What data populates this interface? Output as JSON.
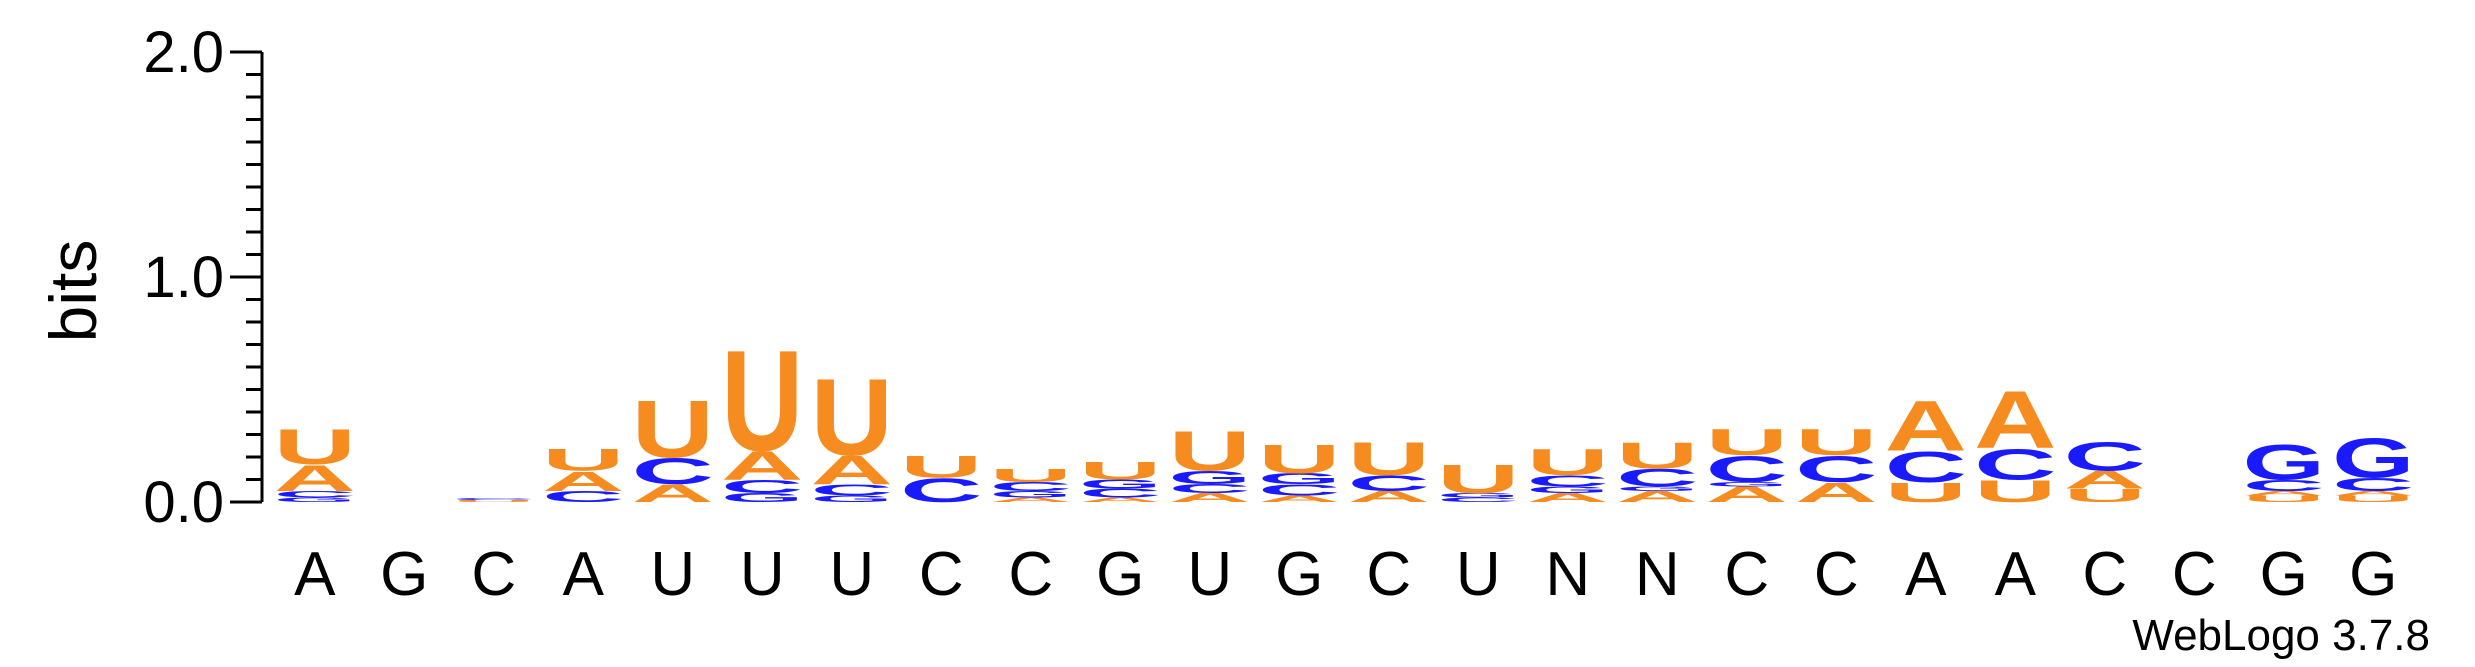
{
  "chart_data": {
    "type": "sequence-logo",
    "ylabel": "bits",
    "ylim": [
      0,
      2.0
    ],
    "yticks": [
      "0.0",
      "1.0",
      "2.0"
    ],
    "credit": "WebLogo 3.7.8",
    "colors": {
      "A": "#f68b1f",
      "U": "#f68b1f",
      "C": "#1a1aff",
      "G": "#1a1aff"
    },
    "positions": [
      {
        "label": "A",
        "stack": [
          {
            "letter": "G",
            "bits": 0.02
          },
          {
            "letter": "C",
            "bits": 0.03
          },
          {
            "letter": "A",
            "bits": 0.12
          },
          {
            "letter": "U",
            "bits": 0.16
          }
        ]
      },
      {
        "label": "G",
        "stack": []
      },
      {
        "label": "C",
        "stack": [
          {
            "letter": "U",
            "bits": 0.01
          },
          {
            "letter": "C",
            "bits": 0.01
          }
        ]
      },
      {
        "label": "A",
        "stack": [
          {
            "letter": "C",
            "bits": 0.05
          },
          {
            "letter": "A",
            "bits": 0.09
          },
          {
            "letter": "U",
            "bits": 0.1
          }
        ]
      },
      {
        "label": "U",
        "stack": [
          {
            "letter": "A",
            "bits": 0.08
          },
          {
            "letter": "C",
            "bits": 0.12
          },
          {
            "letter": "U",
            "bits": 0.26
          }
        ]
      },
      {
        "label": "U",
        "stack": [
          {
            "letter": "G",
            "bits": 0.04
          },
          {
            "letter": "C",
            "bits": 0.06
          },
          {
            "letter": "A",
            "bits": 0.13
          },
          {
            "letter": "U",
            "bits": 0.46
          }
        ]
      },
      {
        "label": "U",
        "stack": [
          {
            "letter": "G",
            "bits": 0.03
          },
          {
            "letter": "C",
            "bits": 0.05
          },
          {
            "letter": "A",
            "bits": 0.13
          },
          {
            "letter": "U",
            "bits": 0.35
          }
        ]
      },
      {
        "label": "C",
        "stack": [
          {
            "letter": "C",
            "bits": 0.11
          },
          {
            "letter": "U",
            "bits": 0.1
          }
        ]
      },
      {
        "label": "C",
        "stack": [
          {
            "letter": "A",
            "bits": 0.02
          },
          {
            "letter": "G",
            "bits": 0.03
          },
          {
            "letter": "C",
            "bits": 0.04
          },
          {
            "letter": "U",
            "bits": 0.06
          }
        ]
      },
      {
        "label": "G",
        "stack": [
          {
            "letter": "A",
            "bits": 0.02
          },
          {
            "letter": "C",
            "bits": 0.04
          },
          {
            "letter": "G",
            "bits": 0.04
          },
          {
            "letter": "U",
            "bits": 0.08
          }
        ]
      },
      {
        "label": "U",
        "stack": [
          {
            "letter": "A",
            "bits": 0.04
          },
          {
            "letter": "C",
            "bits": 0.04
          },
          {
            "letter": "G",
            "bits": 0.06
          },
          {
            "letter": "U",
            "bits": 0.18
          }
        ]
      },
      {
        "label": "G",
        "stack": [
          {
            "letter": "A",
            "bits": 0.03
          },
          {
            "letter": "C",
            "bits": 0.05
          },
          {
            "letter": "G",
            "bits": 0.05
          },
          {
            "letter": "U",
            "bits": 0.13
          }
        ]
      },
      {
        "label": "C",
        "stack": [
          {
            "letter": "A",
            "bits": 0.05
          },
          {
            "letter": "C",
            "bits": 0.07
          },
          {
            "letter": "U",
            "bits": 0.15
          }
        ]
      },
      {
        "label": "U",
        "stack": [
          {
            "letter": "C",
            "bits": 0.02
          },
          {
            "letter": "G",
            "bits": 0.02
          },
          {
            "letter": "U",
            "bits": 0.13
          }
        ]
      },
      {
        "label": "N",
        "stack": [
          {
            "letter": "A",
            "bits": 0.04
          },
          {
            "letter": "G",
            "bits": 0.03
          },
          {
            "letter": "C",
            "bits": 0.05
          },
          {
            "letter": "U",
            "bits": 0.12
          }
        ]
      },
      {
        "label": "N",
        "stack": [
          {
            "letter": "A",
            "bits": 0.05
          },
          {
            "letter": "G",
            "bits": 0.02
          },
          {
            "letter": "C",
            "bits": 0.08
          },
          {
            "letter": "U",
            "bits": 0.12
          }
        ]
      },
      {
        "label": "C",
        "stack": [
          {
            "letter": "A",
            "bits": 0.07
          },
          {
            "letter": "G",
            "bits": 0.02
          },
          {
            "letter": "C",
            "bits": 0.12
          },
          {
            "letter": "U",
            "bits": 0.12
          }
        ]
      },
      {
        "label": "C",
        "stack": [
          {
            "letter": "A",
            "bits": 0.09
          },
          {
            "letter": "C",
            "bits": 0.12
          },
          {
            "letter": "U",
            "bits": 0.12
          }
        ]
      },
      {
        "label": "A",
        "stack": [
          {
            "letter": "U",
            "bits": 0.09
          },
          {
            "letter": "C",
            "bits": 0.14
          },
          {
            "letter": "A",
            "bits": 0.23
          }
        ]
      },
      {
        "label": "A",
        "stack": [
          {
            "letter": "U",
            "bits": 0.1
          },
          {
            "letter": "C",
            "bits": 0.14
          },
          {
            "letter": "A",
            "bits": 0.26
          }
        ]
      },
      {
        "label": "C",
        "stack": [
          {
            "letter": "U",
            "bits": 0.06
          },
          {
            "letter": "A",
            "bits": 0.08
          },
          {
            "letter": "C",
            "bits": 0.13
          }
        ]
      },
      {
        "label": "C",
        "stack": []
      },
      {
        "label": "G",
        "stack": [
          {
            "letter": "U",
            "bits": 0.03
          },
          {
            "letter": "A",
            "bits": 0.02
          },
          {
            "letter": "C",
            "bits": 0.05
          },
          {
            "letter": "G",
            "bits": 0.16
          }
        ]
      },
      {
        "label": "G",
        "stack": [
          {
            "letter": "U",
            "bits": 0.03
          },
          {
            "letter": "A",
            "bits": 0.02
          },
          {
            "letter": "C",
            "bits": 0.06
          },
          {
            "letter": "G",
            "bits": 0.18
          }
        ]
      }
    ]
  }
}
